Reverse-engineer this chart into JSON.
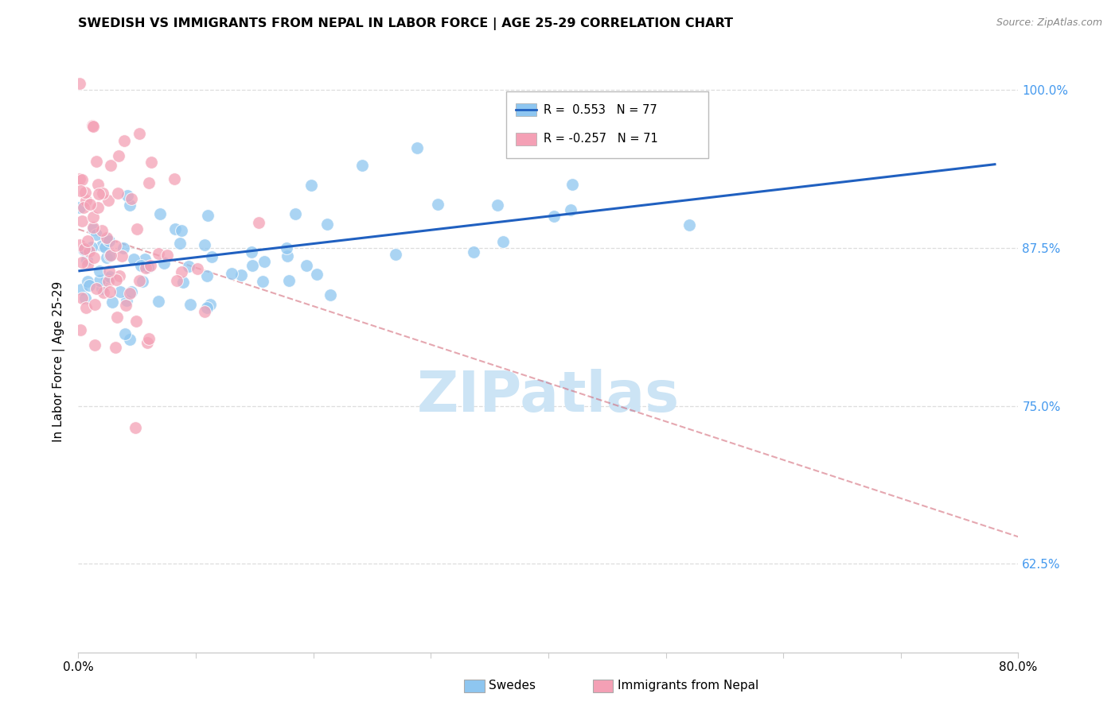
{
  "title": "SWEDISH VS IMMIGRANTS FROM NEPAL IN LABOR FORCE | AGE 25-29 CORRELATION CHART",
  "source": "Source: ZipAtlas.com",
  "ylabel": "In Labor Force | Age 25-29",
  "xmin": 0.0,
  "xmax": 0.8,
  "ymin": 0.555,
  "ymax": 1.015,
  "yticks": [
    0.625,
    0.75,
    0.875,
    1.0
  ],
  "ytick_labels": [
    "62.5%",
    "75.0%",
    "87.5%",
    "100.0%"
  ],
  "xtick_positions": [
    0.0,
    0.1,
    0.2,
    0.3,
    0.4,
    0.5,
    0.6,
    0.7,
    0.8
  ],
  "xtick_labels": [
    "0.0%",
    "",
    "",
    "",
    "",
    "",
    "",
    "",
    "80.0%"
  ],
  "legend_label_swedes": "Swedes",
  "legend_label_nepal": "Immigrants from Nepal",
  "r_swedes": 0.553,
  "n_swedes": 77,
  "r_nepal": -0.257,
  "n_nepal": 71,
  "color_swedes": "#8ec6f0",
  "color_nepal": "#f4a0b5",
  "color_trend_swedes": "#2060c0",
  "color_trend_nepal": "#d06070",
  "watermark_color": "#cce4f5",
  "background_color": "#ffffff",
  "grid_color": "#dddddd",
  "axis_color": "#cccccc",
  "right_tick_color": "#4499ee"
}
